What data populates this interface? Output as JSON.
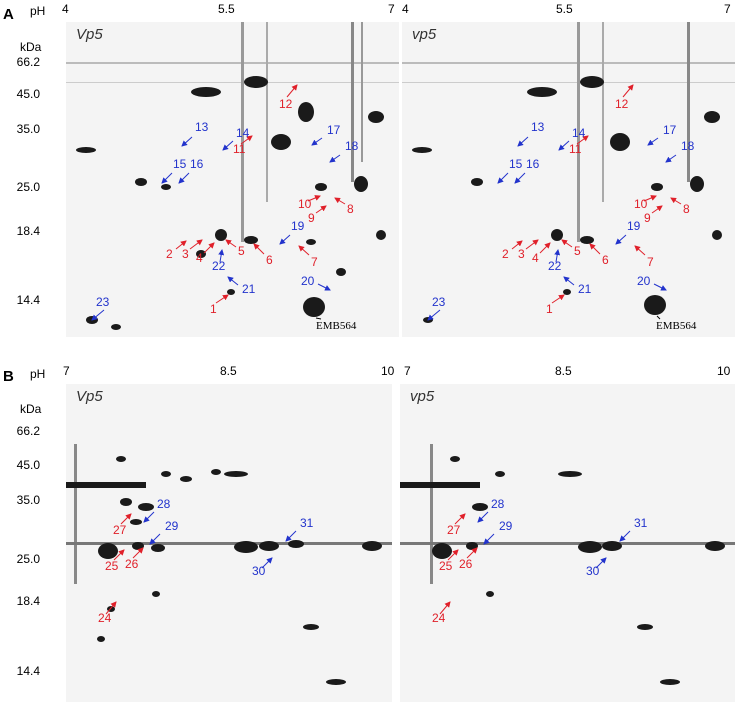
{
  "panels": [
    {
      "letter": "A",
      "ph_label": "pH",
      "kda_label": "kDa",
      "x_ticks_left": [
        "4",
        "5.5",
        "7"
      ],
      "x_ticks_right": [
        "4",
        "5.5",
        "7"
      ],
      "y_ticks": [
        "66.2",
        "45.0",
        "35.0",
        "25.0",
        "18.4",
        "14.4"
      ],
      "gel_titles": [
        "Vp5",
        "vp5"
      ],
      "marker": "EMB564",
      "spot_labels": [
        "1",
        "2",
        "3",
        "4",
        "5",
        "6",
        "7",
        "8",
        "9",
        "10",
        "11",
        "12",
        "13",
        "14",
        "15",
        "16",
        "17",
        "18",
        "19",
        "20",
        "21",
        "22",
        "23"
      ]
    },
    {
      "letter": "B",
      "ph_label": "pH",
      "kda_label": "kDa",
      "x_ticks_left": [
        "7",
        "8.5",
        "10"
      ],
      "x_ticks_right": [
        "7",
        "8.5",
        "10"
      ],
      "y_ticks": [
        "66.2",
        "45.0",
        "35.0",
        "25.0",
        "18.4",
        "14.4"
      ],
      "gel_titles": [
        "Vp5",
        "vp5"
      ],
      "spot_labels": [
        "24",
        "25",
        "26",
        "27",
        "28",
        "29",
        "30",
        "31"
      ]
    }
  ],
  "colors": {
    "up_regulated": "#e0202a",
    "down_regulated": "#2233cc"
  }
}
